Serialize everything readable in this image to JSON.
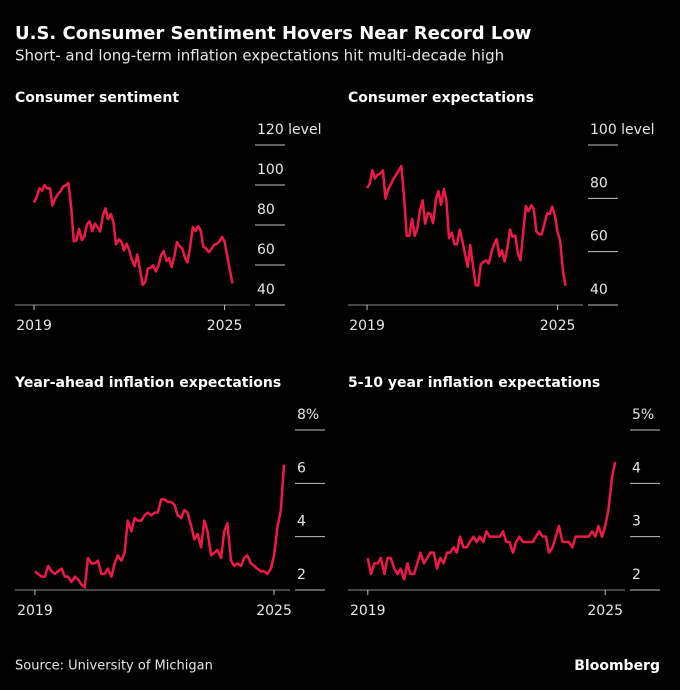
{
  "title": "U.S. Consumer Sentiment Hovers Near Record Low",
  "subtitle": "Short- and long-term inflation expectations hit multi-decade high",
  "source": "Source: University of Michigan",
  "brand": "Bloomberg",
  "chart_data": [
    {
      "type": "line",
      "title": "Consumer sentiment",
      "color": "#f0184a",
      "x": [
        2019,
        2019.08,
        2019.17,
        2019.25,
        2019.33,
        2019.42,
        2019.5,
        2019.58,
        2019.67,
        2019.75,
        2019.83,
        2019.92,
        2020,
        2020.08,
        2020.17,
        2020.25,
        2020.33,
        2020.42,
        2020.5,
        2020.58,
        2020.67,
        2020.75,
        2020.83,
        2020.92,
        2021,
        2021.08,
        2021.17,
        2021.25,
        2021.33,
        2021.42,
        2021.5,
        2021.58,
        2021.67,
        2021.75,
        2021.83,
        2021.92,
        2022,
        2022.08,
        2022.17,
        2022.25,
        2022.33,
        2022.42,
        2022.5,
        2022.58,
        2022.67,
        2022.75,
        2022.83,
        2022.92,
        2023,
        2023.08,
        2023.17,
        2023.25,
        2023.33,
        2023.42,
        2023.5,
        2023.58,
        2023.67,
        2023.75,
        2023.83,
        2023.92,
        2024,
        2024.08,
        2024.17,
        2024.25,
        2024.33,
        2024.42,
        2024.5,
        2024.58,
        2024.67,
        2024.75,
        2024.83,
        2024.92,
        2025,
        2025.08,
        2025.17,
        2025.25
      ],
      "values": [
        91.2,
        93.8,
        98.4,
        97.2,
        100.0,
        98.2,
        98.4,
        89.8,
        93.2,
        95.5,
        96.8,
        99.3,
        99.8,
        101.0,
        89.1,
        71.8,
        72.3,
        78.1,
        72.5,
        74.1,
        80.4,
        81.8,
        76.9,
        80.7,
        79.0,
        76.8,
        84.9,
        88.3,
        82.9,
        85.5,
        81.2,
        70.3,
        72.8,
        71.7,
        67.4,
        70.6,
        67.2,
        62.8,
        59.4,
        65.2,
        58.4,
        50.0,
        51.5,
        58.2,
        58.6,
        59.9,
        56.8,
        59.7,
        64.9,
        67.0,
        62.0,
        63.5,
        59.0,
        64.4,
        71.5,
        69.5,
        68.1,
        63.8,
        61.3,
        69.7,
        79.0,
        76.9,
        79.4,
        77.2,
        69.1,
        68.2,
        66.4,
        67.9,
        70.1,
        70.5,
        71.8,
        74.0,
        71.7,
        64.7,
        57.0,
        50.8
      ],
      "xlim": [
        2018.4,
        2025.8
      ],
      "xticks": [
        2019,
        2025
      ],
      "ylim": [
        40,
        120
      ],
      "yticks": [
        {
          "value": 120,
          "label": "120 level"
        },
        100,
        80,
        60,
        40
      ]
    },
    {
      "type": "line",
      "title": "Consumer expectations",
      "color": "#f0184a",
      "x": [
        2019,
        2019.08,
        2019.17,
        2019.25,
        2019.33,
        2019.42,
        2019.5,
        2019.58,
        2019.67,
        2019.75,
        2019.83,
        2019.92,
        2020,
        2020.08,
        2020.17,
        2020.25,
        2020.33,
        2020.42,
        2020.5,
        2020.58,
        2020.67,
        2020.75,
        2020.83,
        2020.92,
        2021,
        2021.08,
        2021.17,
        2021.25,
        2021.33,
        2021.42,
        2021.5,
        2021.58,
        2021.67,
        2021.75,
        2021.83,
        2021.92,
        2022,
        2022.08,
        2022.17,
        2022.25,
        2022.33,
        2022.42,
        2022.5,
        2022.58,
        2022.67,
        2022.75,
        2022.83,
        2022.92,
        2023,
        2023.08,
        2023.17,
        2023.25,
        2023.33,
        2023.42,
        2023.5,
        2023.58,
        2023.67,
        2023.75,
        2023.83,
        2023.92,
        2024,
        2024.08,
        2024.17,
        2024.25,
        2024.33,
        2024.42,
        2024.5,
        2024.58,
        2024.67,
        2024.75,
        2024.83,
        2024.92,
        2025,
        2025.08,
        2025.17,
        2025.25
      ],
      "values": [
        83.9,
        85.4,
        90.5,
        87.4,
        88.8,
        89.3,
        90.5,
        79.9,
        83.4,
        85.2,
        87.3,
        88.9,
        90.5,
        92.1,
        79.7,
        65.9,
        65.9,
        72.3,
        65.9,
        68.5,
        75.6,
        79.2,
        70.5,
        74.6,
        74.0,
        70.7,
        79.7,
        82.7,
        77.6,
        83.5,
        79.0,
        65.1,
        67.1,
        62.8,
        62.8,
        68.3,
        64.1,
        59.4,
        54.3,
        62.5,
        55.2,
        47.5,
        47.3,
        55.2,
        56.2,
        56.7,
        55.6,
        59.9,
        62.7,
        64.7,
        58.3,
        60.5,
        56.3,
        61.5,
        68.3,
        65.6,
        66.0,
        59.3,
        56.8,
        67.4,
        77.1,
        75.2,
        77.4,
        76.0,
        67.6,
        66.5,
        66.5,
        70.1,
        74.4,
        74.1,
        76.9,
        73.3,
        67.3,
        64.0,
        52.6,
        47.2
      ],
      "xlim": [
        2018.4,
        2025.8
      ],
      "xticks": [
        2019,
        2025
      ],
      "ylim": [
        40,
        100
      ],
      "yticks": [
        {
          "value": 100,
          "label": "100 level"
        },
        80,
        60,
        40
      ]
    },
    {
      "type": "line",
      "title": "Year-ahead inflation expectations",
      "color": "#f0184a",
      "x": [
        2019,
        2019.08,
        2019.17,
        2019.25,
        2019.33,
        2019.42,
        2019.5,
        2019.58,
        2019.67,
        2019.75,
        2019.83,
        2019.92,
        2020,
        2020.08,
        2020.17,
        2020.25,
        2020.33,
        2020.42,
        2020.5,
        2020.58,
        2020.67,
        2020.75,
        2020.83,
        2020.92,
        2021,
        2021.08,
        2021.17,
        2021.25,
        2021.33,
        2021.42,
        2021.5,
        2021.58,
        2021.67,
        2021.75,
        2021.83,
        2021.92,
        2022,
        2022.08,
        2022.17,
        2022.25,
        2022.33,
        2022.42,
        2022.5,
        2022.58,
        2022.67,
        2022.75,
        2022.83,
        2022.92,
        2023,
        2023.08,
        2023.17,
        2023.25,
        2023.33,
        2023.42,
        2023.5,
        2023.58,
        2023.67,
        2023.75,
        2023.83,
        2023.92,
        2024,
        2024.08,
        2024.17,
        2024.25,
        2024.33,
        2024.42,
        2024.5,
        2024.58,
        2024.67,
        2024.75,
        2024.83,
        2024.92,
        2025,
        2025.08,
        2025.17,
        2025.25
      ],
      "values": [
        2.7,
        2.6,
        2.5,
        2.5,
        2.9,
        2.7,
        2.6,
        2.7,
        2.8,
        2.5,
        2.5,
        2.3,
        2.5,
        2.4,
        2.2,
        2.1,
        3.2,
        3.0,
        3.0,
        3.1,
        2.6,
        2.6,
        2.8,
        2.5,
        3.0,
        3.3,
        3.1,
        3.4,
        4.6,
        4.2,
        4.7,
        4.6,
        4.6,
        4.8,
        4.9,
        4.8,
        4.9,
        4.9,
        5.4,
        5.4,
        5.3,
        5.3,
        5.2,
        4.8,
        4.7,
        5.0,
        4.9,
        4.4,
        3.9,
        4.1,
        3.6,
        4.6,
        4.2,
        3.3,
        3.4,
        3.5,
        3.2,
        4.2,
        4.5,
        3.1,
        2.9,
        3.0,
        2.9,
        3.2,
        3.3,
        3.0,
        2.9,
        2.8,
        2.7,
        2.7,
        2.6,
        2.8,
        3.3,
        4.3,
        5.0,
        6.7
      ],
      "xlim": [
        2018.5,
        2025.4
      ],
      "xticks": [
        2019,
        2025
      ],
      "ylim": [
        2,
        8
      ],
      "yticks": [
        {
          "value": 8,
          "label": "8%"
        },
        6,
        4,
        2
      ]
    },
    {
      "type": "line",
      "title": "5-10 year inflation expectations",
      "color": "#f0184a",
      "x": [
        2019,
        2019.08,
        2019.17,
        2019.25,
        2019.33,
        2019.42,
        2019.5,
        2019.58,
        2019.67,
        2019.75,
        2019.83,
        2019.92,
        2020,
        2020.08,
        2020.17,
        2020.25,
        2020.33,
        2020.42,
        2020.5,
        2020.58,
        2020.67,
        2020.75,
        2020.83,
        2020.92,
        2021,
        2021.08,
        2021.17,
        2021.25,
        2021.33,
        2021.42,
        2021.5,
        2021.58,
        2021.67,
        2021.75,
        2021.83,
        2021.92,
        2022,
        2022.08,
        2022.17,
        2022.25,
        2022.33,
        2022.42,
        2022.5,
        2022.58,
        2022.67,
        2022.75,
        2022.83,
        2022.92,
        2023,
        2023.08,
        2023.17,
        2023.25,
        2023.33,
        2023.42,
        2023.5,
        2023.58,
        2023.67,
        2023.75,
        2023.83,
        2023.92,
        2024,
        2024.08,
        2024.17,
        2024.25,
        2024.33,
        2024.42,
        2024.5,
        2024.58,
        2024.67,
        2024.75,
        2024.83,
        2024.92,
        2025,
        2025.08,
        2025.17,
        2025.25
      ],
      "values": [
        2.6,
        2.3,
        2.5,
        2.5,
        2.6,
        2.3,
        2.6,
        2.6,
        2.4,
        2.3,
        2.4,
        2.2,
        2.5,
        2.3,
        2.3,
        2.5,
        2.7,
        2.5,
        2.6,
        2.7,
        2.7,
        2.4,
        2.6,
        2.5,
        2.7,
        2.7,
        2.8,
        2.7,
        3.0,
        2.8,
        2.8,
        2.9,
        3.0,
        2.9,
        3.0,
        2.9,
        3.1,
        3.0,
        3.0,
        3.0,
        3.0,
        3.1,
        2.9,
        2.9,
        2.7,
        2.9,
        3.0,
        2.9,
        2.9,
        2.9,
        2.9,
        3.0,
        3.1,
        3.0,
        3.0,
        2.7,
        2.8,
        3.0,
        3.2,
        2.9,
        2.9,
        2.9,
        2.8,
        3.0,
        3.0,
        3.0,
        3.0,
        3.0,
        3.1,
        3.0,
        3.2,
        3.0,
        3.2,
        3.5,
        4.1,
        4.4
      ],
      "xlim": [
        2018.5,
        2025.5
      ],
      "xticks": [
        2019,
        2025
      ],
      "ylim": [
        2,
        5
      ],
      "yticks": [
        {
          "value": 5,
          "label": "5%"
        },
        4,
        3,
        2
      ]
    }
  ]
}
